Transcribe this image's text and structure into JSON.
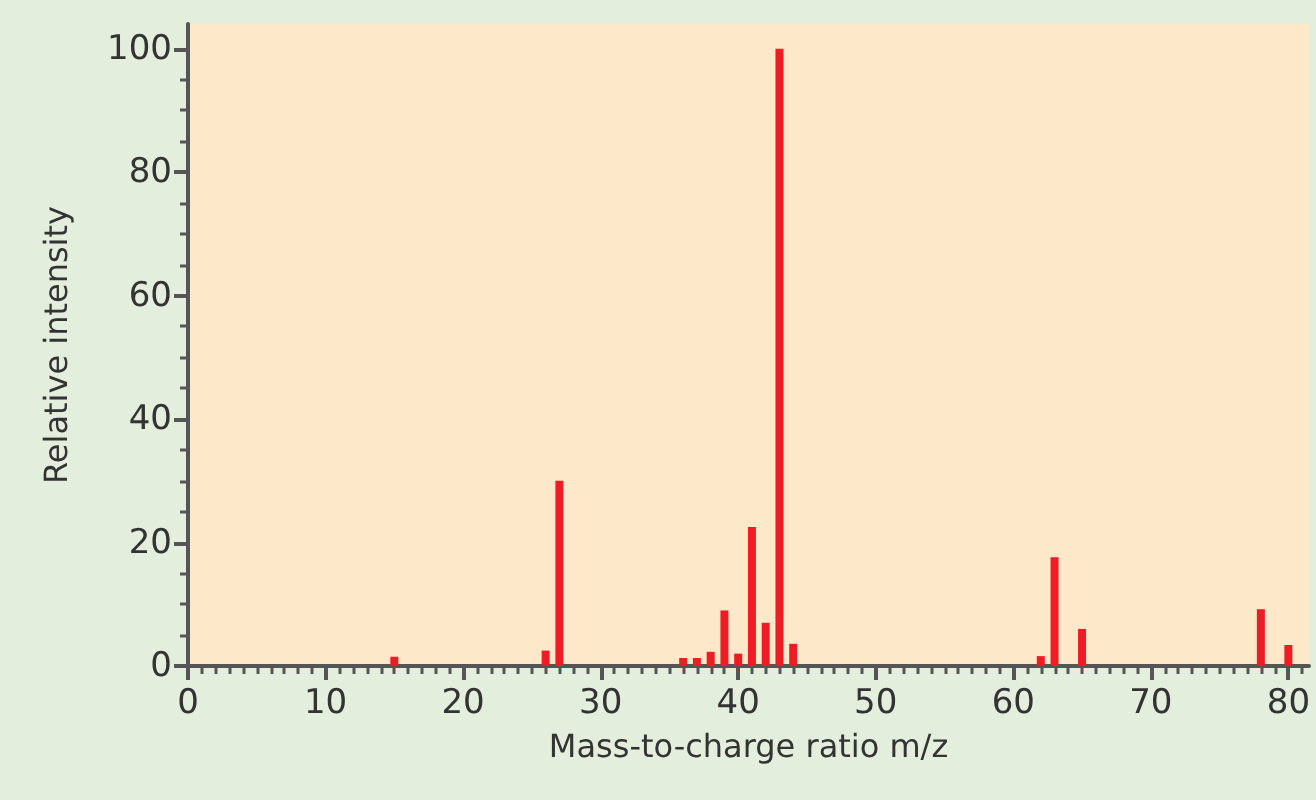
{
  "chart_data": {
    "type": "bar",
    "xlabel": "Mass-to-charge ratio m/z",
    "ylabel": "Relative intensity",
    "x": [
      15,
      26,
      27,
      36,
      37,
      38,
      39,
      40,
      41,
      42,
      43,
      44,
      62,
      63,
      65,
      78,
      80
    ],
    "values": [
      1.5,
      2.5,
      30,
      1.3,
      1.3,
      2.3,
      9,
      2,
      22.5,
      7,
      100,
      3.6,
      1.6,
      17.6,
      6,
      9.2,
      3.4
    ],
    "color": "#ee1c25",
    "xlim": [
      0,
      81.5
    ],
    "xticks": [
      0,
      10,
      20,
      30,
      40,
      50,
      60,
      70,
      80
    ],
    "ylim": [
      0,
      104
    ],
    "yticks": [
      0,
      20,
      40,
      60,
      80,
      100
    ],
    "grid": false
  }
}
